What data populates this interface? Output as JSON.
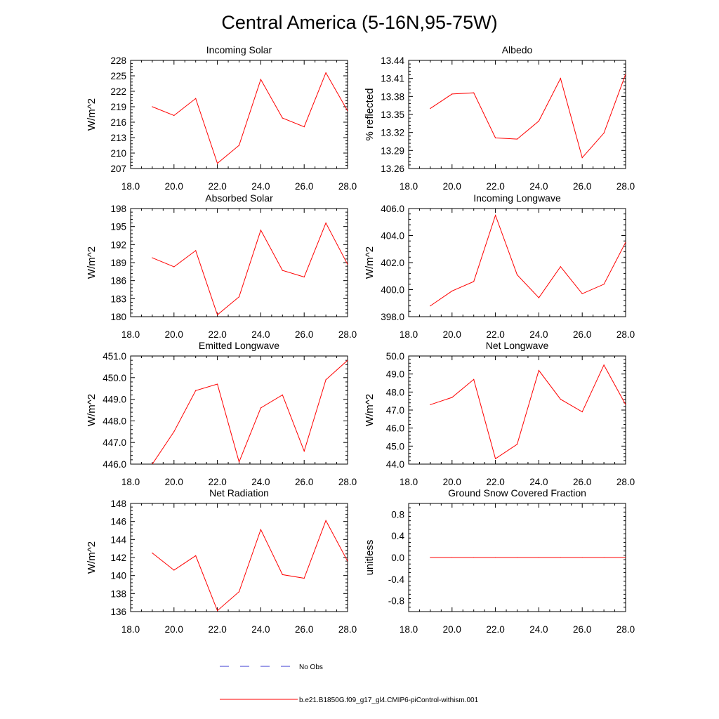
{
  "figure_title": "Central America (5-16N,95-75W)",
  "legend": {
    "obs_label": "No Obs",
    "obs_color": "#3b3bd0",
    "model_label": "b.e21.B1850G.f09_g17_gl4.CMIP6-piControl-withism.001",
    "model_color": "#ff0000"
  },
  "chart_data": [
    {
      "type": "line",
      "title": "Incoming Solar",
      "xlabel": "",
      "ylabel": "W/m^2",
      "xlim": [
        18,
        28
      ],
      "ylim": [
        207,
        228
      ],
      "x_ticks": [
        "18.0",
        "20.0",
        "22.0",
        "24.0",
        "26.0",
        "28.0"
      ],
      "y_ticks": [
        "207",
        "210",
        "213",
        "216",
        "219",
        "222",
        "225",
        "228"
      ],
      "series": [
        {
          "name": "b.e21.B1850G.f09_g17_gl4.CMIP6-piControl-withism.001",
          "x": [
            19,
            20,
            21,
            22,
            23,
            24,
            25,
            26,
            27,
            28
          ],
          "values": [
            219.0,
            217.3,
            220.6,
            208.0,
            211.5,
            224.3,
            216.8,
            215.1,
            225.6,
            218.2
          ]
        }
      ]
    },
    {
      "type": "line",
      "title": "Albedo",
      "xlabel": "",
      "ylabel": "% reflected",
      "xlim": [
        18,
        28
      ],
      "ylim": [
        13.26,
        13.44
      ],
      "x_ticks": [
        "18.0",
        "20.0",
        "22.0",
        "24.0",
        "26.0",
        "28.0"
      ],
      "y_ticks": [
        "13.26",
        "13.29",
        "13.32",
        "13.35",
        "13.38",
        "13.41",
        "13.44"
      ],
      "series": [
        {
          "name": "b.e21.B1850G.f09_g17_gl4.CMIP6-piControl-withism.001",
          "x": [
            19,
            20,
            21,
            22,
            23,
            24,
            25,
            26,
            27,
            28
          ],
          "values": [
            13.36,
            13.384,
            13.386,
            13.311,
            13.309,
            13.339,
            13.41,
            13.278,
            13.319,
            13.417
          ]
        }
      ]
    },
    {
      "type": "line",
      "title": "Absorbed Solar",
      "xlabel": "",
      "ylabel": "W/m^2",
      "xlim": [
        18,
        28
      ],
      "ylim": [
        180,
        198
      ],
      "x_ticks": [
        "18.0",
        "20.0",
        "22.0",
        "24.0",
        "26.0",
        "28.0"
      ],
      "y_ticks": [
        "180",
        "183",
        "186",
        "189",
        "192",
        "195",
        "198"
      ],
      "series": [
        {
          "name": "b.e21.B1850G.f09_g17_gl4.CMIP6-piControl-withism.001",
          "x": [
            19,
            20,
            21,
            22,
            23,
            24,
            25,
            26,
            27,
            28
          ],
          "values": [
            189.8,
            188.3,
            191.0,
            180.3,
            183.3,
            194.4,
            187.7,
            186.6,
            195.6,
            188.7
          ]
        }
      ]
    },
    {
      "type": "line",
      "title": "Incoming Longwave",
      "xlabel": "",
      "ylabel": "W/m^2",
      "xlim": [
        18,
        28
      ],
      "ylim": [
        398,
        406
      ],
      "x_ticks": [
        "18.0",
        "20.0",
        "22.0",
        "24.0",
        "26.0",
        "28.0"
      ],
      "y_ticks": [
        "398.0",
        "400.0",
        "402.0",
        "404.0",
        "406.0"
      ],
      "series": [
        {
          "name": "b.e21.B1850G.f09_g17_gl4.CMIP6-piControl-withism.001",
          "x": [
            19,
            20,
            21,
            22,
            23,
            24,
            25,
            26,
            27,
            28
          ],
          "values": [
            398.8,
            399.9,
            400.6,
            405.5,
            401.1,
            399.4,
            401.7,
            399.7,
            400.4,
            403.5
          ]
        }
      ]
    },
    {
      "type": "line",
      "title": "Emitted Longwave",
      "xlabel": "",
      "ylabel": "W/m^2",
      "xlim": [
        18,
        28
      ],
      "ylim": [
        446,
        451
      ],
      "x_ticks": [
        "18.0",
        "20.0",
        "22.0",
        "24.0",
        "26.0",
        "28.0"
      ],
      "y_ticks": [
        "446.0",
        "447.0",
        "448.0",
        "449.0",
        "450.0",
        "451.0"
      ],
      "series": [
        {
          "name": "b.e21.B1850G.f09_g17_gl4.CMIP6-piControl-withism.001",
          "x": [
            19,
            20,
            21,
            22,
            23,
            24,
            25,
            26,
            27,
            28
          ],
          "values": [
            446.0,
            447.5,
            449.4,
            449.7,
            446.1,
            448.6,
            449.2,
            446.6,
            449.9,
            450.8
          ]
        }
      ]
    },
    {
      "type": "line",
      "title": "Net Longwave",
      "xlabel": "",
      "ylabel": "W/m^2",
      "xlim": [
        18,
        28
      ],
      "ylim": [
        44,
        50
      ],
      "x_ticks": [
        "18.0",
        "20.0",
        "22.0",
        "24.0",
        "26.0",
        "28.0"
      ],
      "y_ticks": [
        "44.0",
        "45.0",
        "46.0",
        "47.0",
        "48.0",
        "49.0",
        "50.0"
      ],
      "series": [
        {
          "name": "b.e21.B1850G.f09_g17_gl4.CMIP6-piControl-withism.001",
          "x": [
            19,
            20,
            21,
            22,
            23,
            24,
            25,
            26,
            27,
            28
          ],
          "values": [
            47.3,
            47.7,
            48.7,
            44.3,
            45.1,
            49.2,
            47.6,
            46.9,
            49.5,
            47.3
          ]
        }
      ]
    },
    {
      "type": "line",
      "title": "Net Radiation",
      "xlabel": "",
      "ylabel": "W/m^2",
      "xlim": [
        18,
        28
      ],
      "ylim": [
        136,
        148
      ],
      "x_ticks": [
        "18.0",
        "20.0",
        "22.0",
        "24.0",
        "26.0",
        "28.0"
      ],
      "y_ticks": [
        "136",
        "138",
        "140",
        "142",
        "144",
        "146",
        "148"
      ],
      "series": [
        {
          "name": "b.e21.B1850G.f09_g17_gl4.CMIP6-piControl-withism.001",
          "x": [
            19,
            20,
            21,
            22,
            23,
            24,
            25,
            26,
            27,
            28
          ],
          "values": [
            142.5,
            140.6,
            142.2,
            136.1,
            138.2,
            145.1,
            140.1,
            139.7,
            146.1,
            141.6
          ]
        }
      ]
    },
    {
      "type": "line",
      "title": "Ground Snow Covered Fraction",
      "xlabel": "",
      "ylabel": "unitless",
      "xlim": [
        18,
        28
      ],
      "ylim": [
        -1.0,
        1.0
      ],
      "x_ticks": [
        "18.0",
        "20.0",
        "22.0",
        "24.0",
        "26.0",
        "28.0"
      ],
      "y_ticks": [
        "-0.8",
        "-0.4",
        "0.0",
        "0.4",
        "0.8"
      ],
      "series": [
        {
          "name": "b.e21.B1850G.f09_g17_gl4.CMIP6-piControl-withism.001",
          "x": [
            19,
            20,
            21,
            22,
            23,
            24,
            25,
            26,
            27,
            28
          ],
          "values": [
            0,
            0,
            0,
            0,
            0,
            0,
            0,
            0,
            0,
            0
          ]
        }
      ]
    }
  ]
}
